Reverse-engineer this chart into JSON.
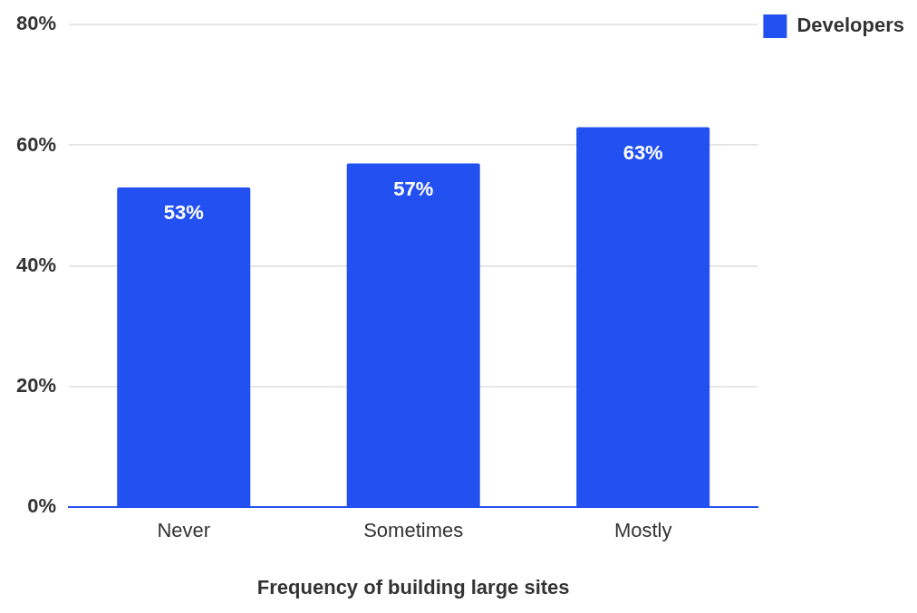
{
  "chart_data": {
    "type": "bar",
    "xlabel": "Frequency of building large sites",
    "categories": [
      "Never",
      "Sometimes",
      "Mostly"
    ],
    "series": [
      {
        "name": "Developers",
        "color": "#2350f0",
        "values": [
          53,
          57,
          63
        ]
      }
    ],
    "ylim": [
      0,
      80
    ],
    "yticks": [
      {
        "value": 0,
        "label": "0%"
      },
      {
        "value": 20,
        "label": "20%"
      },
      {
        "value": 40,
        "label": "40%"
      },
      {
        "value": 60,
        "label": "60%"
      },
      {
        "value": 80,
        "label": "80%"
      }
    ],
    "grid": "y",
    "legend": "top right",
    "value_labels": [
      "53%",
      "57%",
      "63%"
    ]
  }
}
